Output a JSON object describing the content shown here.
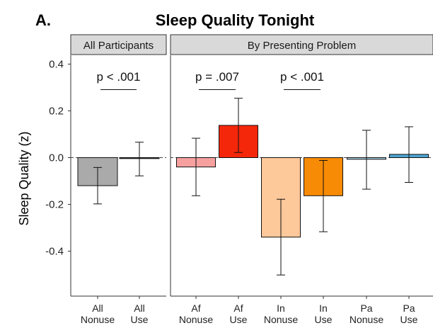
{
  "chart_data": {
    "type": "bar",
    "panel_label": "A.",
    "title": "Sleep Quality Tonight",
    "ylabel": "Sleep Quality (z)",
    "ylim": [
      -0.6,
      0.45
    ],
    "yticks": [
      0.4,
      0.2,
      0.0,
      -0.2,
      -0.4
    ],
    "ytick_labels": [
      "0.4",
      "0.2",
      "0.0",
      "-0.2",
      "-0.4"
    ],
    "grid": false,
    "reference_line": 0,
    "facets": [
      {
        "name": "All Participants",
        "bars": [
          {
            "label": [
              "All",
              "Nonuse"
            ],
            "value": -0.12,
            "ci_low": -0.198,
            "ci_high": -0.042,
            "color": "#aaaaaa"
          },
          {
            "label": [
              "All",
              "Use"
            ],
            "value": -0.004,
            "ci_low": -0.078,
            "ci_high": 0.066,
            "color": "#333333"
          }
        ],
        "annotations": [
          {
            "text": "p < .001",
            "between": [
              0,
              1
            ]
          }
        ]
      },
      {
        "name": "By Presenting Problem",
        "bars": [
          {
            "label": [
              "Af",
              "Nonuse"
            ],
            "value": -0.04,
            "ci_low": -0.163,
            "ci_high": 0.083,
            "color": "#f7a0a0"
          },
          {
            "label": [
              "Af",
              "Use"
            ],
            "value": 0.138,
            "ci_low": 0.022,
            "ci_high": 0.254,
            "color": "#f5270a"
          },
          {
            "label": [
              "In",
              "Nonuse"
            ],
            "value": -0.34,
            "ci_low": -0.502,
            "ci_high": -0.178,
            "color": "#fdc89a"
          },
          {
            "label": [
              "In",
              "Use"
            ],
            "value": -0.163,
            "ci_low": -0.317,
            "ci_high": -0.012,
            "color": "#f78b05"
          },
          {
            "label": [
              "Pa",
              "Nonuse"
            ],
            "value": -0.007,
            "ci_low": -0.135,
            "ci_high": 0.117,
            "color": "#a9d3ea"
          },
          {
            "label": [
              "Pa",
              "Use"
            ],
            "value": 0.014,
            "ci_low": -0.106,
            "ci_high": 0.132,
            "color": "#4da5d1"
          }
        ],
        "annotations": [
          {
            "text": "p = .007",
            "between": [
              0,
              1
            ]
          },
          {
            "text": "p < .001",
            "between": [
              2,
              3
            ]
          }
        ]
      }
    ]
  }
}
